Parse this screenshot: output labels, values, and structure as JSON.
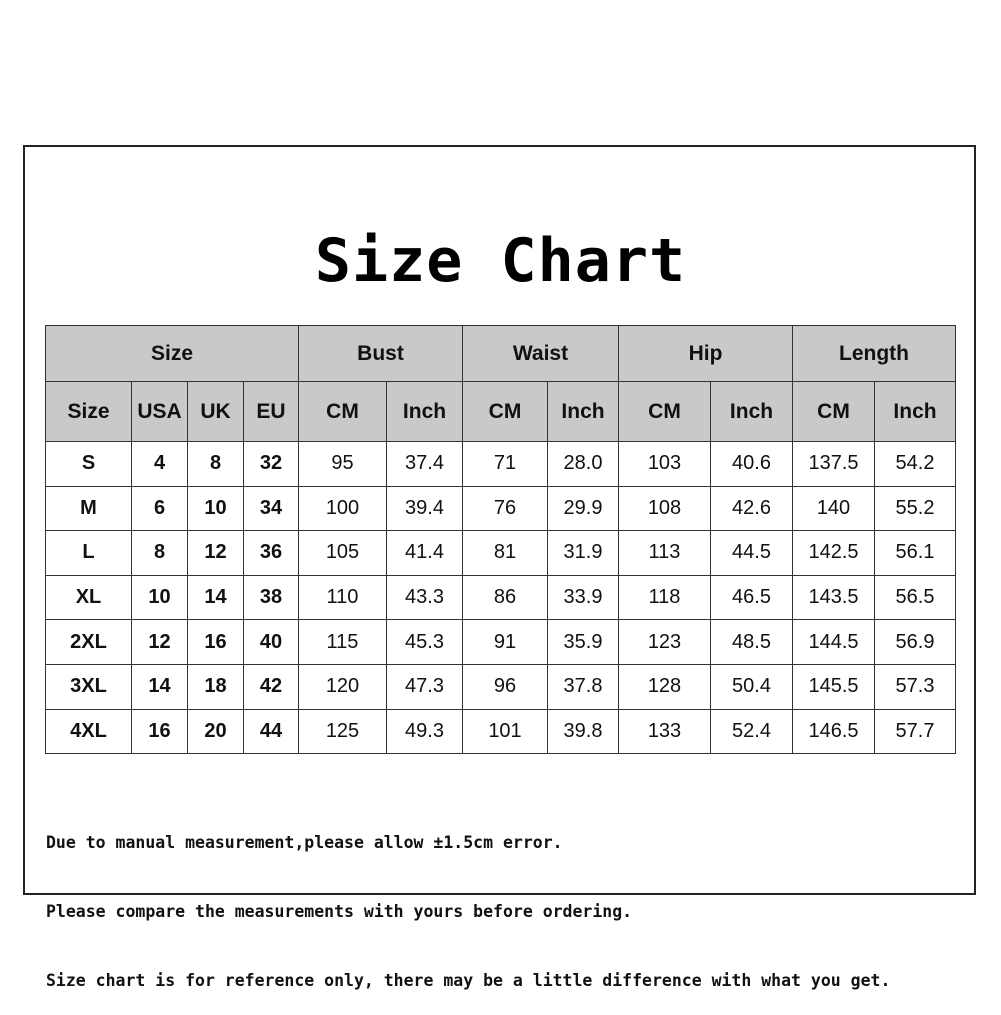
{
  "title": "Size Chart",
  "table": {
    "group_headers": [
      {
        "label": "Size",
        "span": 4
      },
      {
        "label": "Bust",
        "span": 2
      },
      {
        "label": "Waist",
        "span": 2
      },
      {
        "label": "Hip",
        "span": 2
      },
      {
        "label": "Length",
        "span": 2
      }
    ],
    "column_headers": [
      "Size",
      "USA",
      "UK",
      "EU",
      "CM",
      "Inch",
      "CM",
      "Inch",
      "CM",
      "Inch",
      "CM",
      "Inch"
    ],
    "rows": [
      [
        "S",
        "4",
        "8",
        "32",
        "95",
        "37.4",
        "71",
        "28.0",
        "103",
        "40.6",
        "137.5",
        "54.2"
      ],
      [
        "M",
        "6",
        "10",
        "34",
        "100",
        "39.4",
        "76",
        "29.9",
        "108",
        "42.6",
        "140",
        "55.2"
      ],
      [
        "L",
        "8",
        "12",
        "36",
        "105",
        "41.4",
        "81",
        "31.9",
        "113",
        "44.5",
        "142.5",
        "56.1"
      ],
      [
        "XL",
        "10",
        "14",
        "38",
        "110",
        "43.3",
        "86",
        "33.9",
        "118",
        "46.5",
        "143.5",
        "56.5"
      ],
      [
        "2XL",
        "12",
        "16",
        "40",
        "115",
        "45.3",
        "91",
        "35.9",
        "123",
        "48.5",
        "144.5",
        "56.9"
      ],
      [
        "3XL",
        "14",
        "18",
        "42",
        "120",
        "47.3",
        "96",
        "37.8",
        "128",
        "50.4",
        "145.5",
        "57.3"
      ],
      [
        "4XL",
        "16",
        "20",
        "44",
        "125",
        "49.3",
        "101",
        "39.8",
        "133",
        "52.4",
        "146.5",
        "57.7"
      ]
    ]
  },
  "notes": [
    "Due to manual measurement,please allow ±1.5cm error.",
    "Please compare the measurements with yours before ordering.",
    "Size chart is for reference only, there may be a little difference with what you get."
  ],
  "colors": {
    "header_bg": "#c9c9c9",
    "border": "#333333"
  }
}
